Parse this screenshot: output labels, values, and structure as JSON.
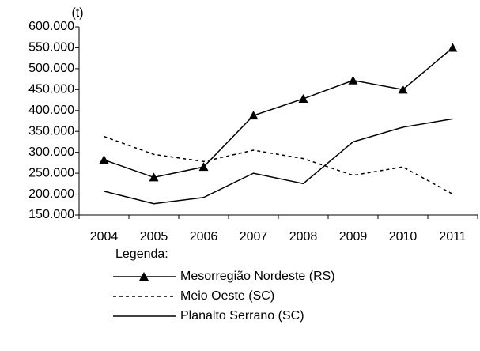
{
  "chart_data": {
    "type": "line",
    "y_label": "(t)",
    "categories": [
      "2004",
      "2005",
      "2006",
      "2007",
      "2008",
      "2009",
      "2010",
      "2011"
    ],
    "series": [
      {
        "name": "Mesorregião Nordeste (RS)",
        "color": "#000000",
        "marker": "triangle",
        "dash": false,
        "values": [
          282000,
          240000,
          265000,
          388000,
          428000,
          472000,
          450000,
          550000
        ]
      },
      {
        "name": "Meio Oeste (SC)",
        "color": "#000000",
        "marker": "none",
        "dash": true,
        "values": [
          338000,
          295000,
          278000,
          305000,
          285000,
          245000,
          265000,
          200000
        ]
      },
      {
        "name": "Planalto Serrano (SC)",
        "color": "#000000",
        "marker": "none",
        "dash": false,
        "values": [
          207000,
          177000,
          192000,
          250000,
          225000,
          325000,
          360000,
          380000
        ]
      }
    ],
    "ylim": [
      150000,
      600000
    ],
    "yticks": [
      {
        "value": 150000,
        "label": "150.000"
      },
      {
        "value": 200000,
        "label": "200.000"
      },
      {
        "value": 250000,
        "label": "250.000"
      },
      {
        "value": 300000,
        "label": "300.000"
      },
      {
        "value": 350000,
        "label": "350.000"
      },
      {
        "value": 400000,
        "label": "400.000"
      },
      {
        "value": 450000,
        "label": "450.000"
      },
      {
        "value": 500000,
        "label": "500.000"
      },
      {
        "value": 550000,
        "label": "550.000"
      },
      {
        "value": 600000,
        "label": "600.000"
      }
    ],
    "grid": false,
    "legend_title": "Legenda:",
    "legend_position": "bottom"
  }
}
